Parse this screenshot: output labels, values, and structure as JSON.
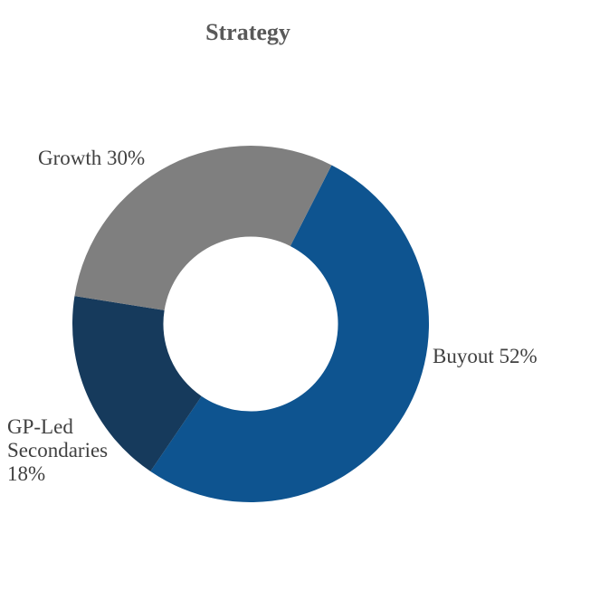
{
  "chart": {
    "title": "Strategy"
  },
  "chart_data": {
    "type": "pie",
    "subtype": "donut",
    "title": "Strategy",
    "legend": "none",
    "direction": "clockwise",
    "start_angle_deg": 27,
    "hole_ratio": 0.49,
    "title_color": "#595959",
    "data_label_color": "#404040",
    "slices": [
      {
        "label": "Buyout",
        "value": 52,
        "color": "#0E5490",
        "data_label": "Buyout 52%"
      },
      {
        "label": "GP-Led Secondaries",
        "value": 18,
        "color": "#163A5C",
        "data_label": "GP-Led\nSecondaries\n18%"
      },
      {
        "label": "Growth",
        "value": 30,
        "color": "#7F7F7F",
        "data_label": "Growth 30%"
      }
    ]
  },
  "labels": {
    "buyout": "Buyout 52%",
    "gpled": "GP-Led\nSecondaries\n18%",
    "growth": "Growth 30%"
  }
}
